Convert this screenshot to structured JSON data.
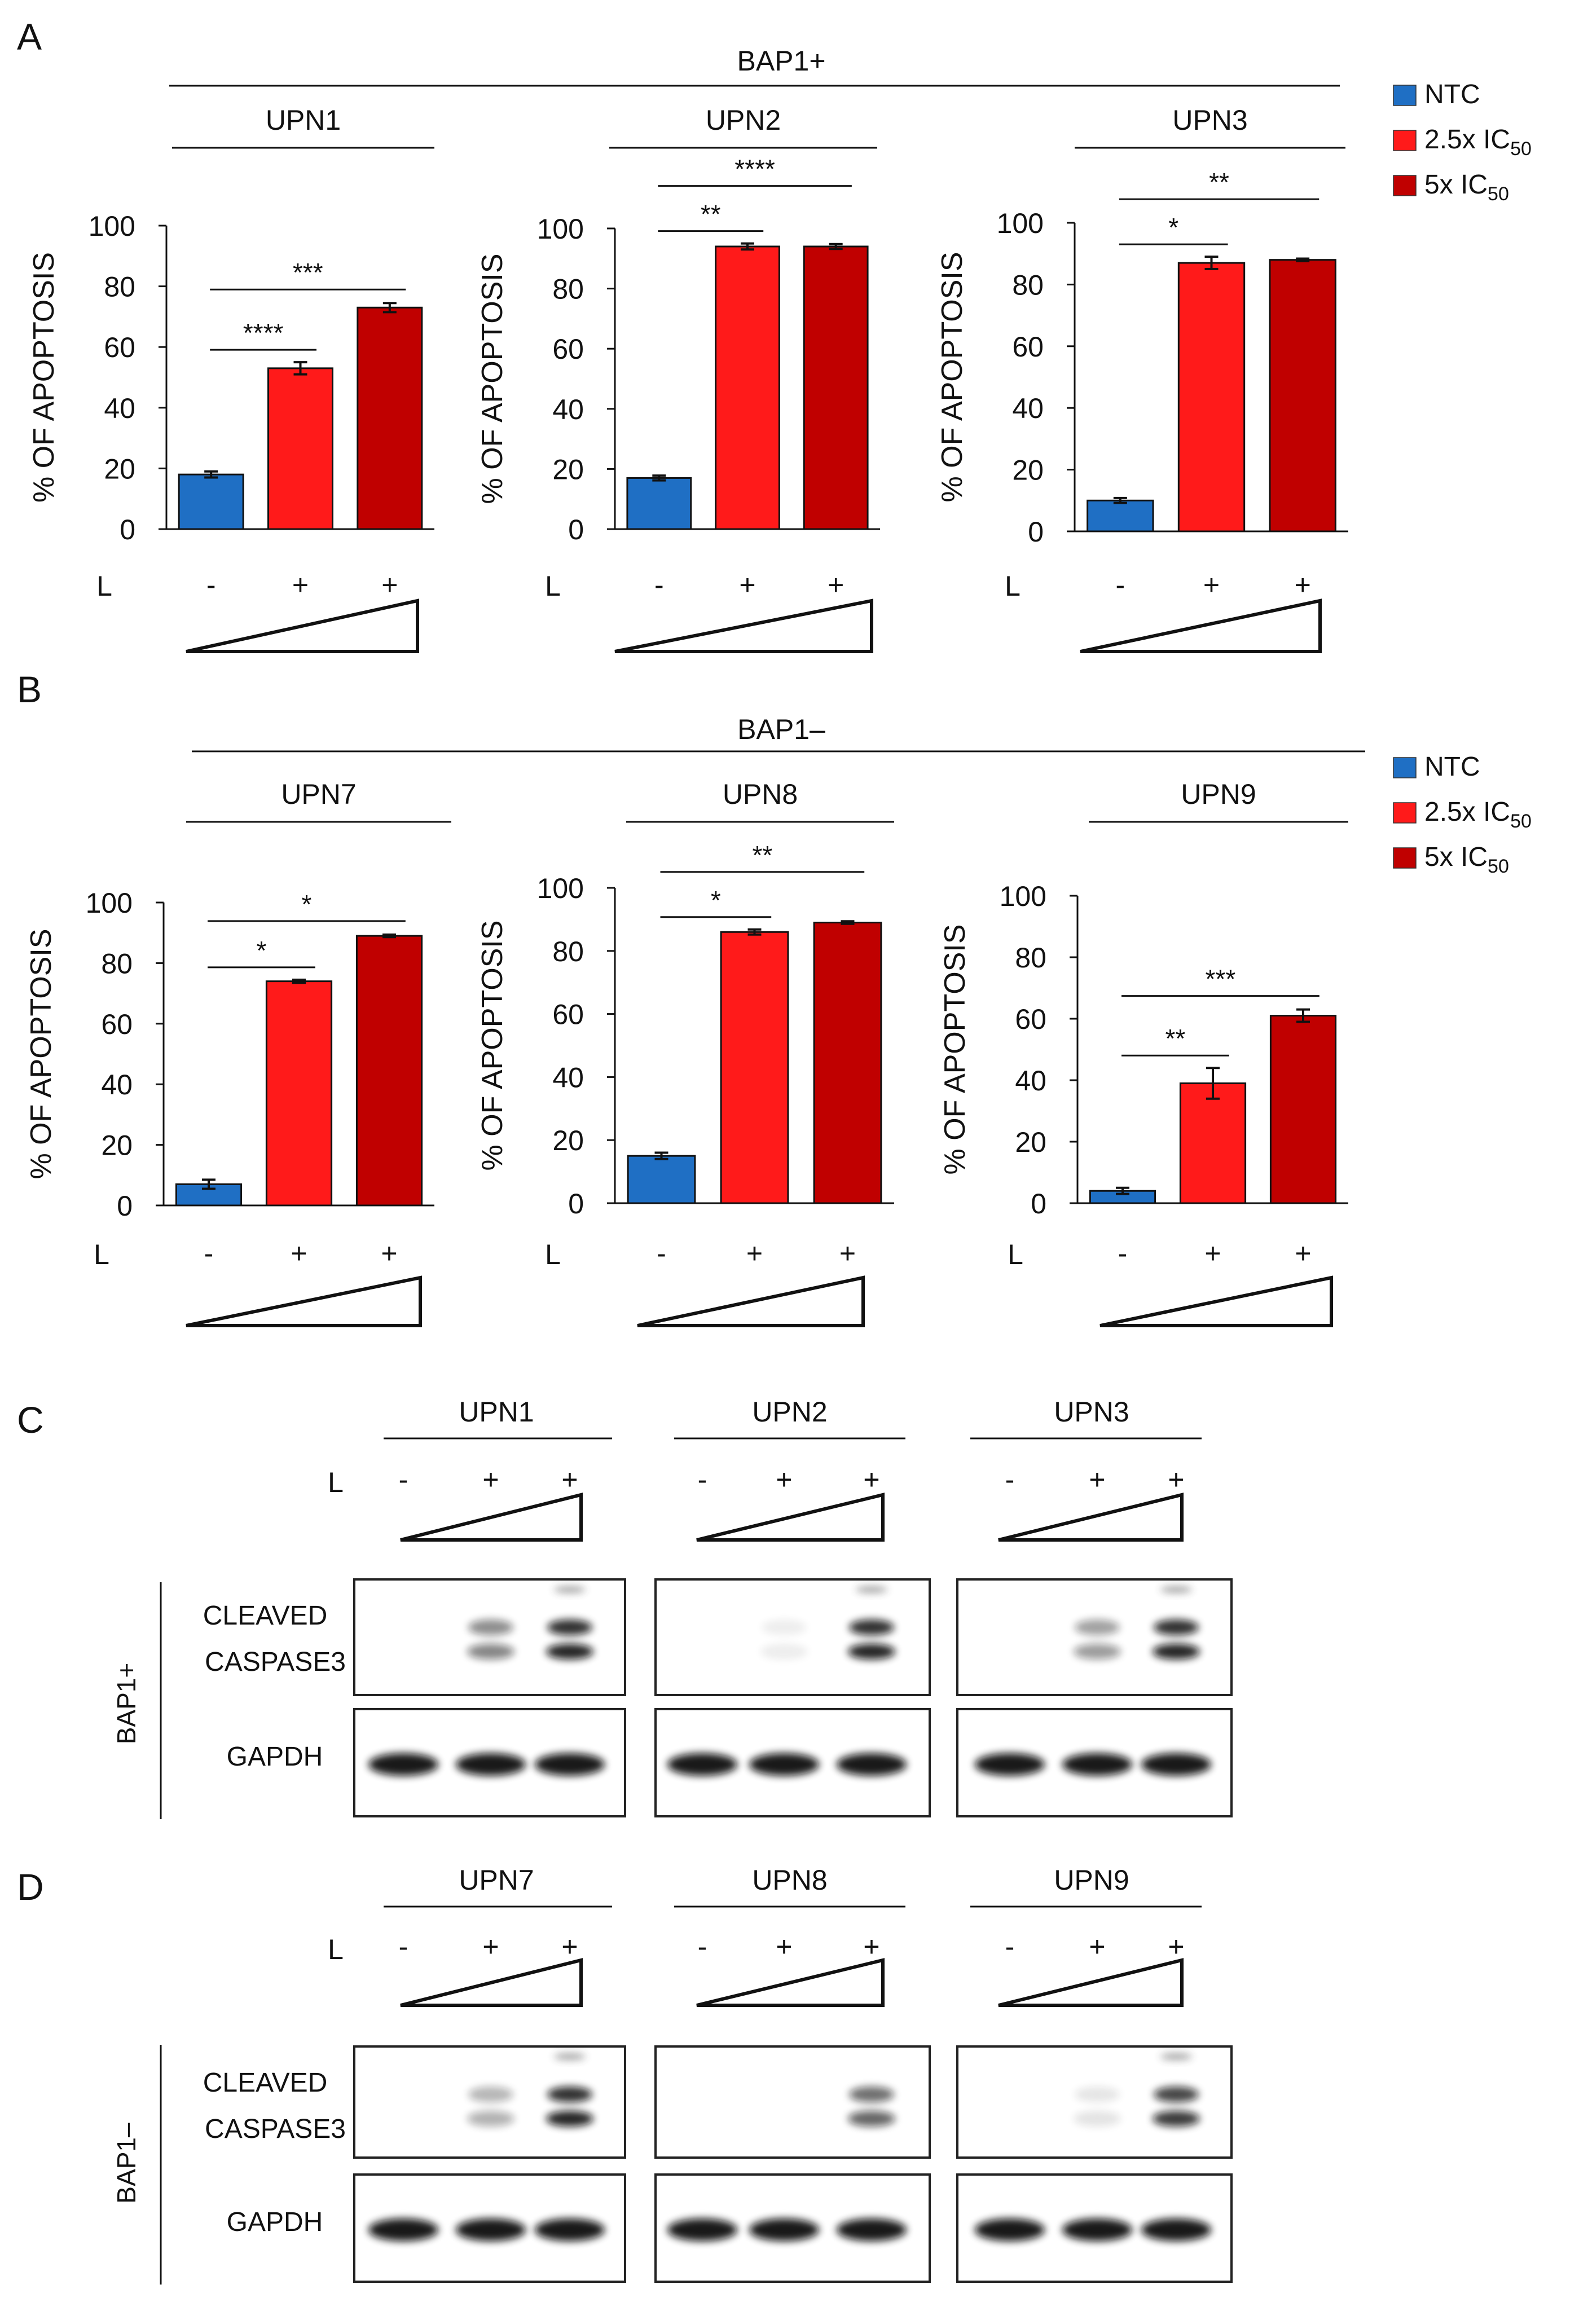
{
  "panels": [
    "A",
    "B",
    "C",
    "D"
  ],
  "groups": {
    "bap_pos": "BAP1+",
    "bap_neg": "BAP1–"
  },
  "legend": [
    {
      "label": "NTC",
      "color": "#1f6fc4"
    },
    {
      "label": "2.5x IC",
      "sub": "50",
      "color": "#ff1a1a"
    },
    {
      "label": "5x IC",
      "sub": "50",
      "color": "#c00000"
    }
  ],
  "colors": {
    "ntc": "#1f6fc4",
    "low": "#ff1a1a",
    "high": "#c00000"
  },
  "dose_row": {
    "label": "L",
    "signs": [
      "-",
      "+",
      "+"
    ]
  },
  "chart_data": [
    {
      "type": "bar",
      "group": "BAP1+",
      "title": "UPN1",
      "ylabel": "% OF APOPTOSIS",
      "ylim": [
        0,
        100
      ],
      "yticks": [
        0,
        20,
        40,
        60,
        80,
        100
      ],
      "categories": [
        "NTC",
        "2.5x IC50",
        "5x IC50"
      ],
      "values": [
        18,
        53,
        73
      ],
      "errors": [
        1,
        2,
        1.5
      ],
      "brackets": [
        {
          "from": 0,
          "to": 1,
          "label": "****"
        },
        {
          "from": 0,
          "to": 2,
          "label": "***"
        }
      ]
    },
    {
      "type": "bar",
      "group": "BAP1+",
      "title": "UPN2",
      "ylabel": "% OF APOPTOSIS",
      "ylim": [
        0,
        100
      ],
      "yticks": [
        0,
        20,
        40,
        60,
        80,
        100
      ],
      "categories": [
        "NTC",
        "2.5x IC50",
        "5x IC50"
      ],
      "values": [
        17,
        94,
        94
      ],
      "errors": [
        0.8,
        1,
        0.8
      ],
      "brackets": [
        {
          "from": 0,
          "to": 1,
          "label": "**"
        },
        {
          "from": 0,
          "to": 2,
          "label": "****"
        }
      ]
    },
    {
      "type": "bar",
      "group": "BAP1+",
      "title": "UPN3",
      "ylabel": "% OF APOPTOSIS",
      "ylim": [
        0,
        100
      ],
      "yticks": [
        0,
        20,
        40,
        60,
        80,
        100
      ],
      "categories": [
        "NTC",
        "2.5x IC50",
        "5x IC50"
      ],
      "values": [
        10,
        87,
        88
      ],
      "errors": [
        0.8,
        2,
        0.4
      ],
      "brackets": [
        {
          "from": 0,
          "to": 1,
          "label": "*"
        },
        {
          "from": 0,
          "to": 2,
          "label": "**"
        }
      ]
    },
    {
      "type": "bar",
      "group": "BAP1–",
      "title": "UPN7",
      "ylabel": "% OF APOPTOSIS",
      "ylim": [
        0,
        100
      ],
      "yticks": [
        0,
        20,
        40,
        60,
        80,
        100
      ],
      "categories": [
        "NTC",
        "2.5x IC50",
        "5x IC50"
      ],
      "values": [
        7,
        74,
        89
      ],
      "errors": [
        1.5,
        0.5,
        0.4
      ],
      "brackets": [
        {
          "from": 0,
          "to": 1,
          "label": "*"
        },
        {
          "from": 0,
          "to": 2,
          "label": "*"
        }
      ]
    },
    {
      "type": "bar",
      "group": "BAP1–",
      "title": "UPN8",
      "ylabel": "% OF APOPTOSIS",
      "ylim": [
        0,
        100
      ],
      "yticks": [
        0,
        20,
        40,
        60,
        80,
        100
      ],
      "categories": [
        "NTC",
        "2.5x IC50",
        "5x IC50"
      ],
      "values": [
        15,
        86,
        89
      ],
      "errors": [
        1,
        0.8,
        0.4
      ],
      "brackets": [
        {
          "from": 0,
          "to": 1,
          "label": "*"
        },
        {
          "from": 0,
          "to": 2,
          "label": "**"
        }
      ]
    },
    {
      "type": "bar",
      "group": "BAP1–",
      "title": "UPN9",
      "ylabel": "% OF APOPTOSIS",
      "ylim": [
        0,
        100
      ],
      "yticks": [
        0,
        20,
        40,
        60,
        80,
        100
      ],
      "categories": [
        "NTC",
        "2.5x IC50",
        "5x IC50"
      ],
      "values": [
        4,
        39,
        61
      ],
      "errors": [
        1,
        5,
        2
      ],
      "brackets": [
        {
          "from": 0,
          "to": 1,
          "label": "**"
        },
        {
          "from": 0,
          "to": 2,
          "label": "***"
        }
      ]
    }
  ],
  "blots": {
    "labels": {
      "cleaved1": "CLEAVED",
      "cleaved2": "CASPASE3",
      "gapdh": "GAPDH"
    },
    "C": [
      {
        "title": "UPN1",
        "caspase_intensity": [
          0,
          0.55,
          1.0
        ],
        "gapdh_intensity": [
          1,
          1,
          1
        ]
      },
      {
        "title": "UPN2",
        "caspase_intensity": [
          0,
          0.08,
          1.0
        ],
        "gapdh_intensity": [
          1,
          1,
          1
        ]
      },
      {
        "title": "UPN3",
        "caspase_intensity": [
          0,
          0.45,
          1.0
        ],
        "gapdh_intensity": [
          1,
          1,
          1
        ]
      }
    ],
    "D": [
      {
        "title": "UPN7",
        "caspase_intensity": [
          0,
          0.35,
          1.0
        ],
        "gapdh_intensity": [
          1,
          1,
          1
        ]
      },
      {
        "title": "UPN8",
        "caspase_intensity": [
          0,
          0,
          0.7
        ],
        "gapdh_intensity": [
          1,
          1,
          1
        ]
      },
      {
        "title": "UPN9",
        "caspase_intensity": [
          0,
          0.12,
          0.9
        ],
        "gapdh_intensity": [
          1,
          1,
          1
        ]
      }
    ]
  }
}
